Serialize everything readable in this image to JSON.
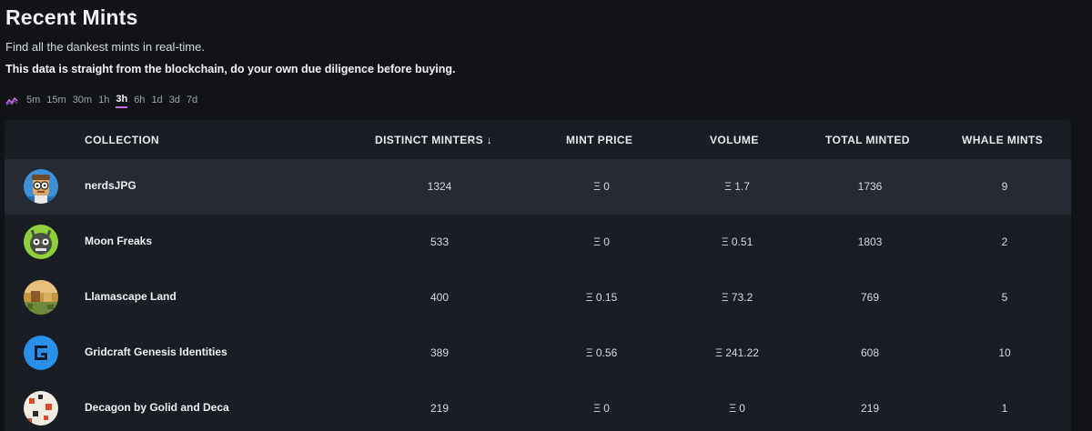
{
  "page": {
    "title": "Recent Mints",
    "subtitle": "Find all the dankest mints in real-time.",
    "warning": "This data is straight from the blockchain, do your own due diligence before buying."
  },
  "time_ranges": {
    "icon": "sparkline-icon",
    "options": [
      "5m",
      "15m",
      "30m",
      "1h",
      "3h",
      "6h",
      "1d",
      "3d",
      "7d"
    ],
    "selected": "3h"
  },
  "table": {
    "headers": {
      "collection": "COLLECTION",
      "distinct_minters": "DISTINCT MINTERS ↓",
      "mint_price": "MINT PRICE",
      "volume": "VOLUME",
      "total_minted": "TOTAL MINTED",
      "whale_mints": "WHALE MINTS"
    },
    "rows": [
      {
        "name": "nerdsJPG",
        "distinct_minters": "1324",
        "mint_price": "Ξ 0",
        "volume": "Ξ 1.7",
        "total_minted": "1736",
        "whale_mints": "9",
        "avatar_icon": "nerd-avatar-icon"
      },
      {
        "name": "Moon Freaks",
        "distinct_minters": "533",
        "mint_price": "Ξ 0",
        "volume": "Ξ 0.51",
        "total_minted": "1803",
        "whale_mints": "2",
        "avatar_icon": "freak-avatar-icon"
      },
      {
        "name": "Llamascape Land",
        "distinct_minters": "400",
        "mint_price": "Ξ 0.15",
        "volume": "Ξ 73.2",
        "total_minted": "769",
        "whale_mints": "5",
        "avatar_icon": "land-avatar-icon"
      },
      {
        "name": "Gridcraft Genesis Identities",
        "distinct_minters": "389",
        "mint_price": "Ξ 0.56",
        "volume": "Ξ 241.22",
        "total_minted": "608",
        "whale_mints": "10",
        "avatar_icon": "gridcraft-logo-icon"
      },
      {
        "name": "Decagon by Golid and Deca",
        "distinct_minters": "219",
        "mint_price": "Ξ 0",
        "volume": "Ξ 0",
        "total_minted": "219",
        "whale_mints": "1",
        "avatar_icon": "decagon-avatar-icon"
      }
    ]
  },
  "colors": {
    "background": "#121417",
    "table_background": "#1a1d24",
    "highlight_row": "#252a33",
    "accent": "#c46be6"
  }
}
